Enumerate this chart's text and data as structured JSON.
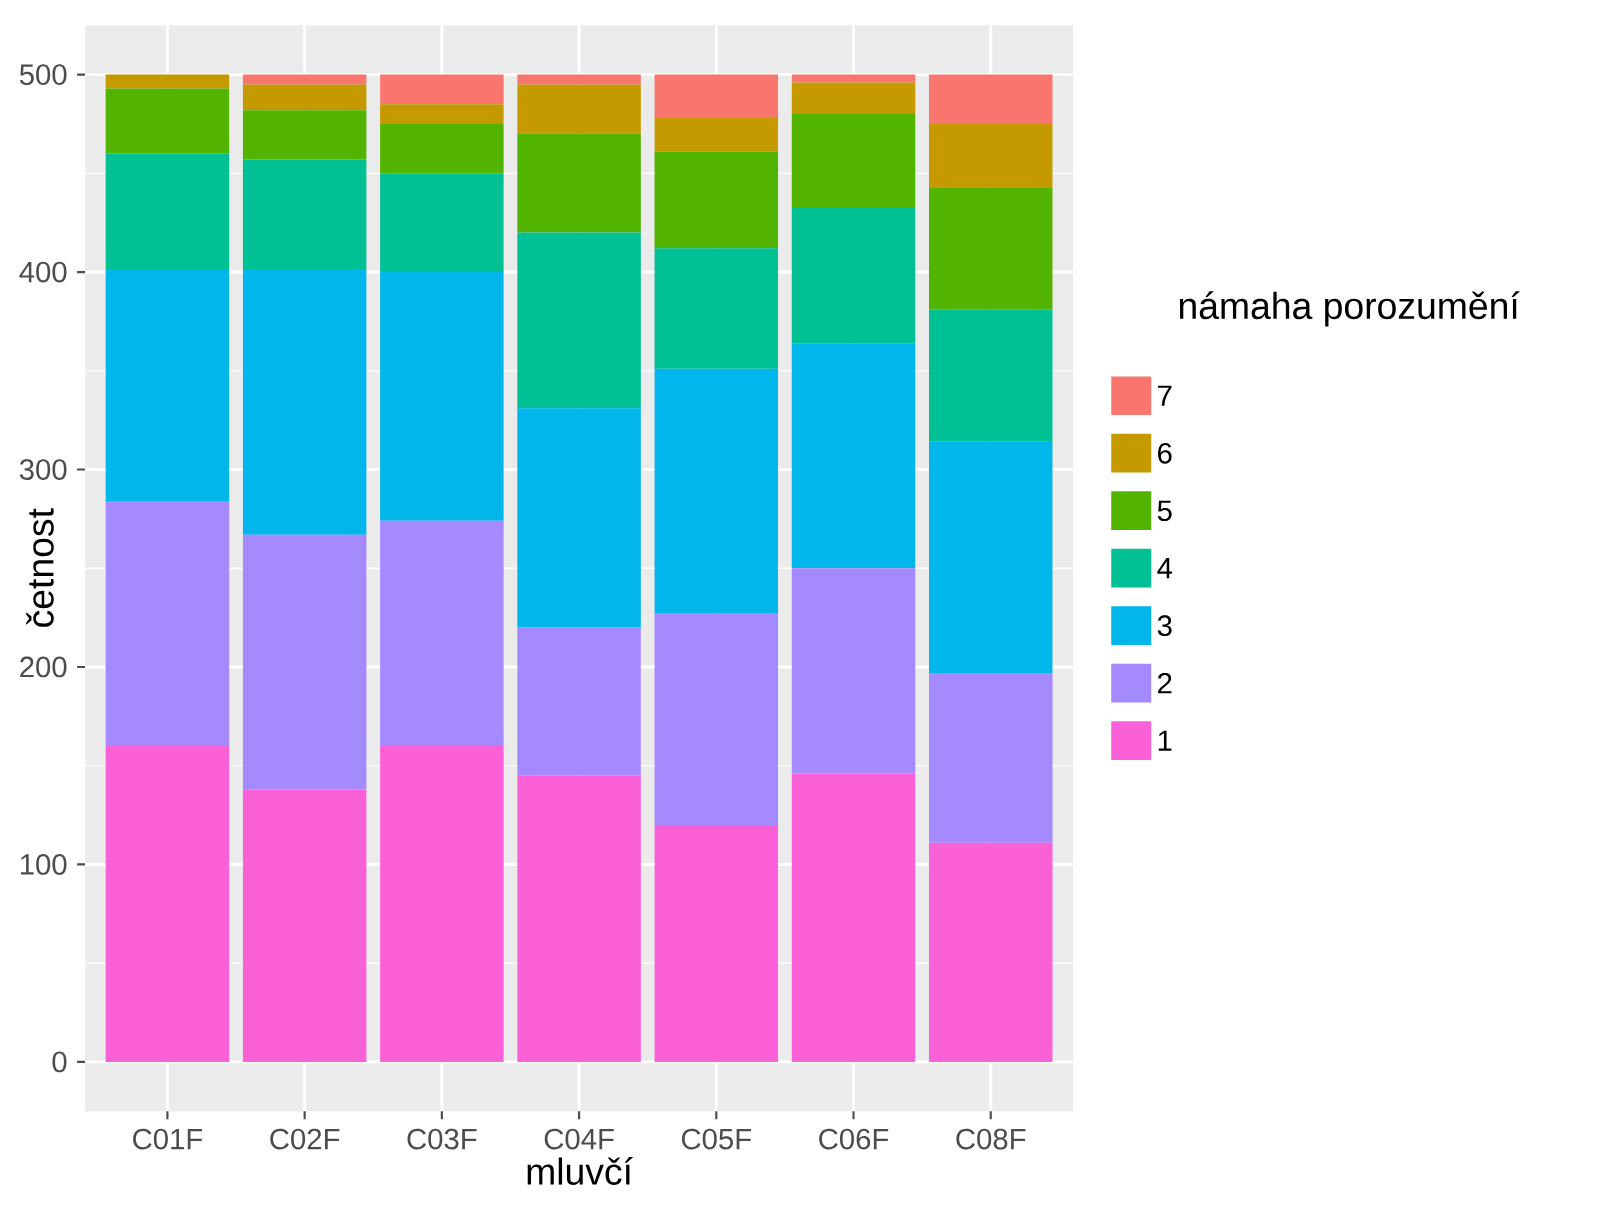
{
  "chart_data": {
    "type": "bar",
    "stacked": true,
    "xlabel": "mluvčí",
    "ylabel": "četnost",
    "legend_title": "námaha porozumění",
    "categories": [
      "C01F",
      "C02F",
      "C03F",
      "C04F",
      "C05F",
      "C06F",
      "C08F"
    ],
    "series": [
      {
        "name": "1",
        "color": "#fb61d7",
        "values": [
          160,
          138,
          160,
          145,
          120,
          146,
          111
        ]
      },
      {
        "name": "2",
        "color": "#a58aff",
        "values": [
          124,
          129,
          114,
          75,
          107,
          104,
          86
        ]
      },
      {
        "name": "3",
        "color": "#00b6eb",
        "values": [
          117,
          134,
          126,
          111,
          124,
          114,
          117
        ]
      },
      {
        "name": "4",
        "color": "#00c094",
        "values": [
          59,
          56,
          50,
          89,
          61,
          69,
          67
        ]
      },
      {
        "name": "5",
        "color": "#53b400",
        "values": [
          33,
          25,
          25,
          50,
          49,
          47,
          62
        ]
      },
      {
        "name": "6",
        "color": "#c49a00",
        "values": [
          7,
          13,
          10,
          25,
          17,
          16,
          32
        ]
      },
      {
        "name": "7",
        "color": "#f8766d",
        "values": [
          0,
          5,
          15,
          5,
          22,
          4,
          25
        ]
      }
    ],
    "ylim": [
      -25,
      525
    ],
    "yticks": [
      0,
      100,
      200,
      300,
      400,
      500
    ],
    "grid": true,
    "legend": "right"
  }
}
